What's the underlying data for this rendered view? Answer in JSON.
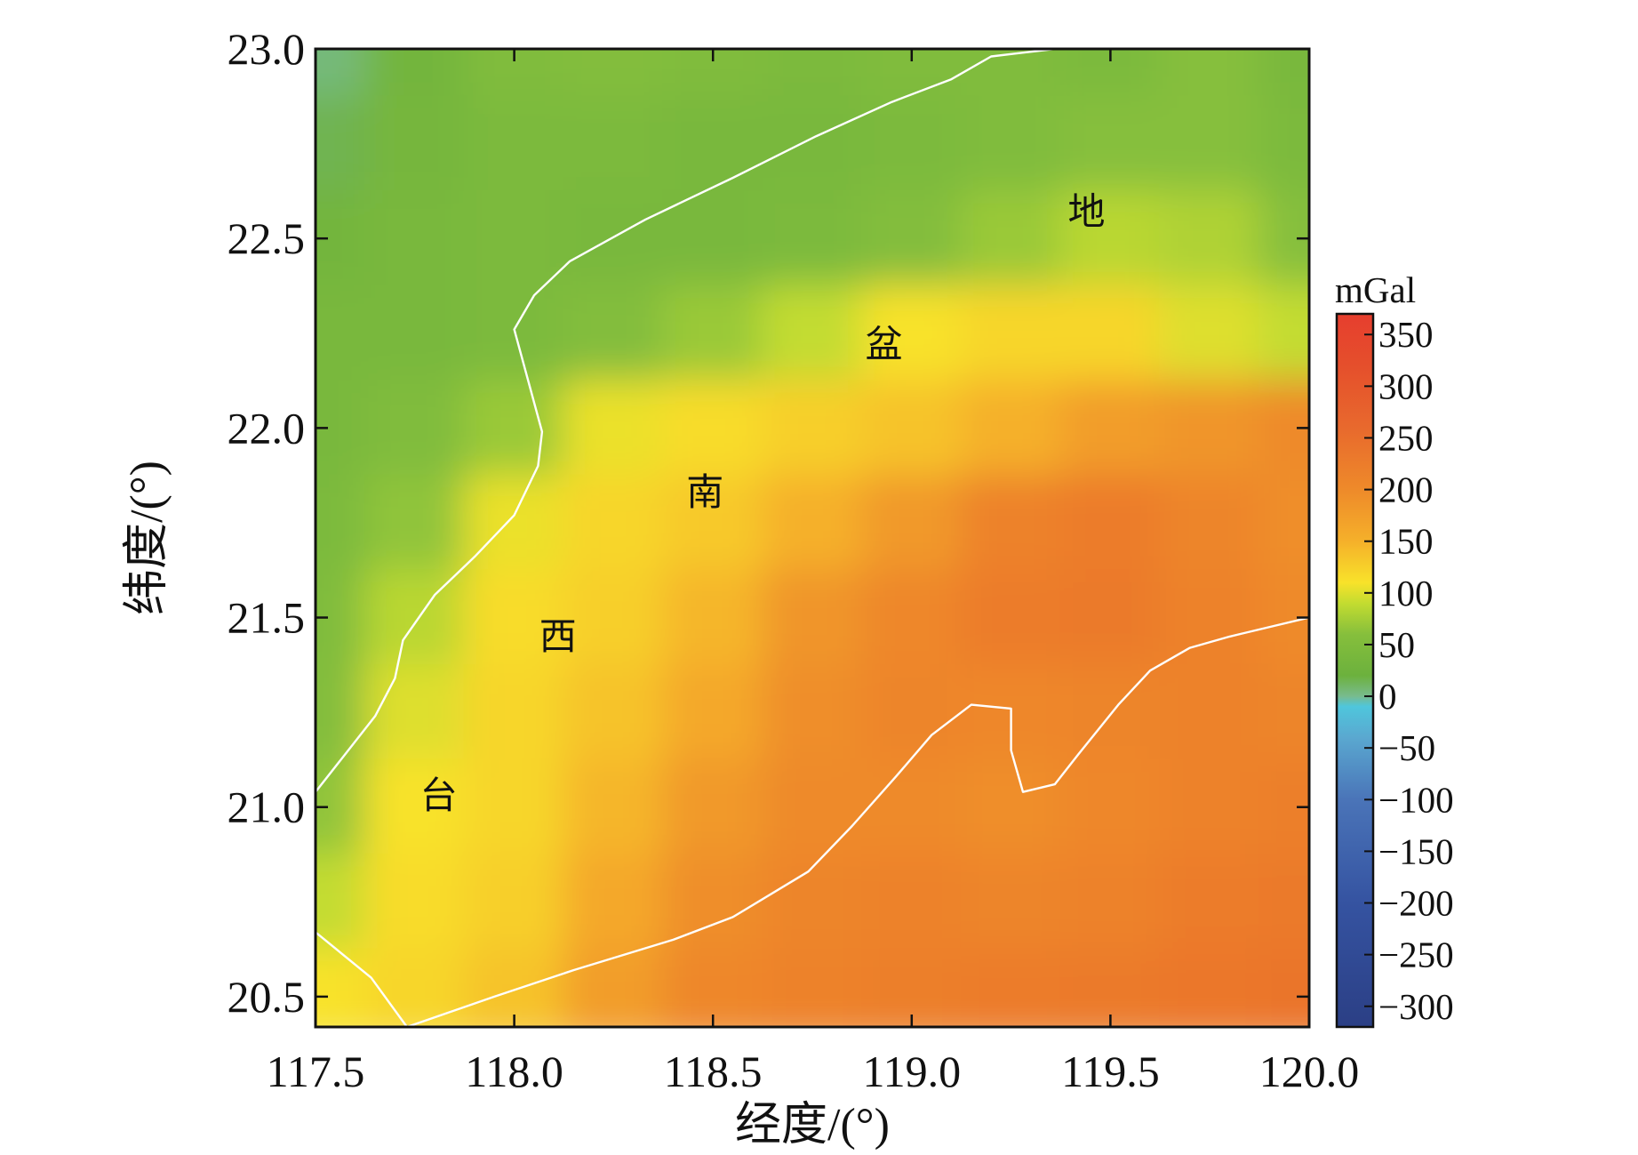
{
  "chart_data": {
    "type": "heatmap",
    "title": "",
    "xlabel": "经度/(°)",
    "ylabel": "纬度/(°)",
    "xlim": [
      117.5,
      120.0
    ],
    "ylim": [
      20.42,
      23.0
    ],
    "x_ticks": [
      {
        "value": 117.5,
        "label": "117.5"
      },
      {
        "value": 118.0,
        "label": "118.0"
      },
      {
        "value": 118.5,
        "label": "118.5"
      },
      {
        "value": 119.0,
        "label": "119.0"
      },
      {
        "value": 119.5,
        "label": "119.5"
      },
      {
        "value": 120.0,
        "label": "120.0"
      }
    ],
    "y_ticks": [
      {
        "value": 23.0,
        "label": "23.0"
      },
      {
        "value": 22.5,
        "label": "22.5"
      },
      {
        "value": 22.0,
        "label": "22.0"
      },
      {
        "value": 21.5,
        "label": "21.5"
      },
      {
        "value": 21.0,
        "label": "21.0"
      },
      {
        "value": 20.5,
        "label": "20.5"
      }
    ],
    "grid": false,
    "colorbar": {
      "unit": "mGal",
      "range": [
        -320,
        370
      ],
      "ticks": [
        {
          "value": 350,
          "label": "350"
        },
        {
          "value": 300,
          "label": "300"
        },
        {
          "value": 250,
          "label": "250"
        },
        {
          "value": 200,
          "label": "200"
        },
        {
          "value": 150,
          "label": "150"
        },
        {
          "value": 100,
          "label": "100"
        },
        {
          "value": 50,
          "label": "50"
        },
        {
          "value": 0,
          "label": "0"
        },
        {
          "value": -50,
          "label": "−50"
        },
        {
          "value": -100,
          "label": "−100"
        },
        {
          "value": -150,
          "label": "−150"
        },
        {
          "value": -200,
          "label": "−200"
        },
        {
          "value": -250,
          "label": "−250"
        },
        {
          "value": -300,
          "label": "−300"
        }
      ],
      "colors": [
        {
          "value": -320,
          "color": "#2b3f85"
        },
        {
          "value": -200,
          "color": "#3553a1"
        },
        {
          "value": -100,
          "color": "#4a74b8"
        },
        {
          "value": -40,
          "color": "#5aa8d0"
        },
        {
          "value": -10,
          "color": "#4fc6dc"
        },
        {
          "value": 0,
          "color": "#78bb8e"
        },
        {
          "value": 20,
          "color": "#6cb13d"
        },
        {
          "value": 60,
          "color": "#86bf3c"
        },
        {
          "value": 90,
          "color": "#c3dc30"
        },
        {
          "value": 110,
          "color": "#f8e22a"
        },
        {
          "value": 150,
          "color": "#f5b02a"
        },
        {
          "value": 200,
          "color": "#ee8a2a"
        },
        {
          "value": 260,
          "color": "#e8692d"
        },
        {
          "value": 320,
          "color": "#e54f2c"
        },
        {
          "value": 370,
          "color": "#e63e2e"
        }
      ]
    },
    "gravity_anomaly_mgal": {
      "x": [
        117.5,
        117.75,
        118.0,
        118.25,
        118.5,
        118.75,
        119.0,
        119.25,
        119.5,
        119.75,
        120.0
      ],
      "y": [
        23.0,
        22.75,
        22.5,
        22.25,
        22.0,
        21.75,
        21.5,
        21.25,
        21.0,
        20.75,
        20.5
      ],
      "z": [
        [
          5,
          30,
          50,
          55,
          50,
          45,
          50,
          50,
          45,
          60,
          40
        ],
        [
          15,
          35,
          45,
          45,
          40,
          40,
          45,
          50,
          60,
          60,
          45
        ],
        [
          30,
          40,
          45,
          40,
          40,
          45,
          55,
          70,
          85,
          80,
          60
        ],
        [
          40,
          40,
          45,
          55,
          70,
          90,
          110,
          120,
          120,
          100,
          90
        ],
        [
          40,
          50,
          70,
          105,
          115,
          125,
          135,
          150,
          175,
          185,
          200
        ],
        [
          45,
          65,
          105,
          120,
          130,
          150,
          180,
          215,
          225,
          210,
          195
        ],
        [
          50,
          85,
          115,
          125,
          145,
          185,
          205,
          225,
          230,
          215,
          200
        ],
        [
          55,
          100,
          120,
          135,
          160,
          195,
          210,
          205,
          210,
          215,
          210
        ],
        [
          65,
          110,
          120,
          145,
          180,
          200,
          200,
          195,
          205,
          215,
          220
        ],
        [
          90,
          115,
          125,
          160,
          195,
          210,
          215,
          210,
          215,
          225,
          230
        ],
        [
          110,
          120,
          135,
          175,
          205,
          215,
          220,
          225,
          230,
          235,
          240
        ]
      ]
    },
    "boundary_lines": [
      {
        "color": "#ffffff",
        "points": [
          [
            117.5,
            21.04
          ],
          [
            117.65,
            21.24
          ],
          [
            117.7,
            21.34
          ],
          [
            117.72,
            21.44
          ],
          [
            117.8,
            21.56
          ],
          [
            117.9,
            21.66
          ],
          [
            118.0,
            21.77
          ],
          [
            118.06,
            21.9
          ],
          [
            118.07,
            21.99
          ],
          [
            118.0,
            22.26
          ],
          [
            118.05,
            22.35
          ],
          [
            118.14,
            22.44
          ],
          [
            118.33,
            22.55
          ],
          [
            118.55,
            22.66
          ],
          [
            118.76,
            22.77
          ],
          [
            118.95,
            22.86
          ],
          [
            119.1,
            22.92
          ],
          [
            119.2,
            22.98
          ],
          [
            119.36,
            23.0
          ]
        ]
      },
      {
        "color": "#ffffff",
        "points": [
          [
            117.5,
            20.67
          ],
          [
            117.64,
            20.55
          ],
          [
            117.73,
            20.42
          ],
          [
            117.95,
            20.5
          ],
          [
            118.15,
            20.57
          ],
          [
            118.4,
            20.65
          ],
          [
            118.55,
            20.71
          ],
          [
            118.74,
            20.83
          ],
          [
            118.85,
            20.95
          ],
          [
            118.96,
            21.08
          ],
          [
            119.05,
            21.19
          ],
          [
            119.15,
            21.27
          ],
          [
            119.25,
            21.26
          ],
          [
            119.25,
            21.15
          ],
          [
            119.28,
            21.04
          ],
          [
            119.36,
            21.06
          ],
          [
            119.42,
            21.14
          ],
          [
            119.52,
            21.27
          ],
          [
            119.6,
            21.36
          ],
          [
            119.7,
            21.42
          ],
          [
            119.8,
            21.45
          ],
          [
            120.0,
            21.5
          ]
        ]
      }
    ],
    "annotations": [
      {
        "text": "台",
        "x": 117.81,
        "y": 21.03
      },
      {
        "text": "西",
        "x": 118.11,
        "y": 21.45
      },
      {
        "text": "南",
        "x": 118.48,
        "y": 21.83
      },
      {
        "text": "盆",
        "x": 118.93,
        "y": 22.22
      },
      {
        "text": "地",
        "x": 119.44,
        "y": 22.57
      }
    ]
  }
}
